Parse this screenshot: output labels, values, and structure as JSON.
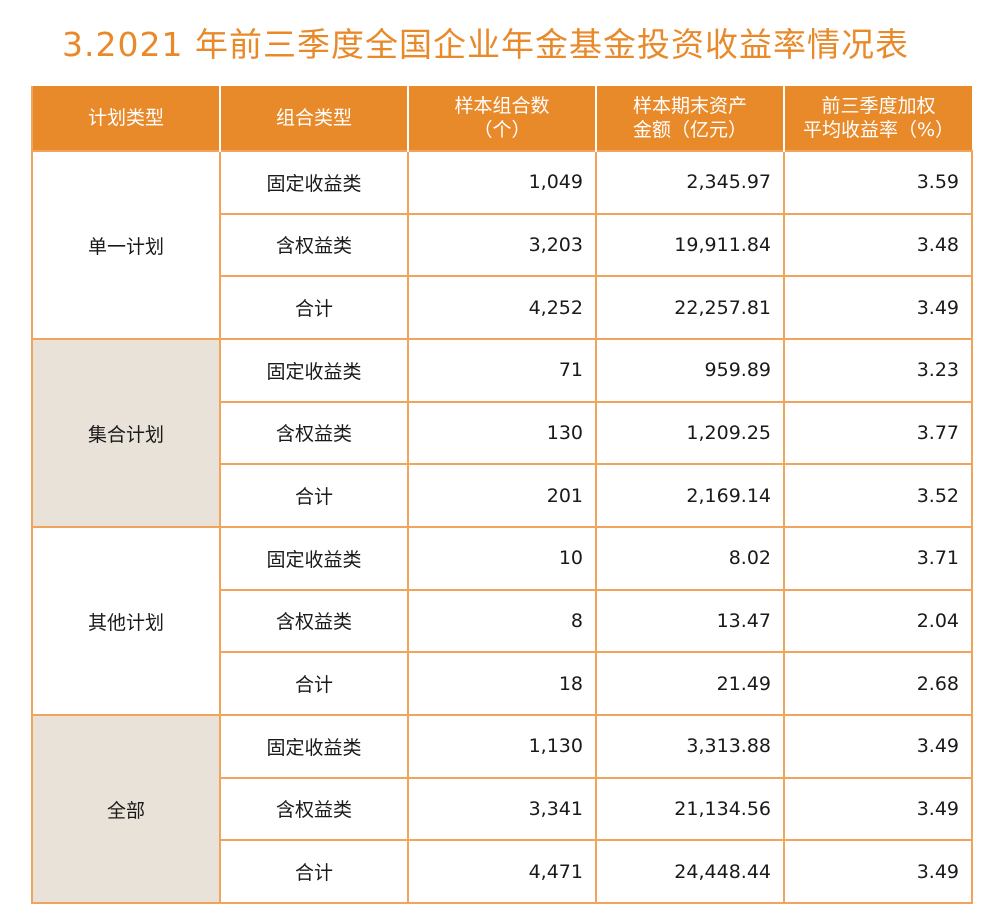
{
  "title": "3.2021 年前三季度全国企业年金基金投资收益率情况表",
  "headers": {
    "plan_type": "计划类型",
    "portfolio_type": "组合类型",
    "sample_count": [
      "样本组合数",
      "（个）"
    ],
    "assets": [
      "样本期末资产",
      "金额（亿元）"
    ],
    "return_rate": [
      "前三季度加权",
      "平均收益率（%）"
    ]
  },
  "groups": [
    {
      "plan": "单一计划",
      "rows": [
        {
          "type": "固定收益类",
          "count": "1,049",
          "assets": "2,345.97",
          "rate": "3.59"
        },
        {
          "type": "含权益类",
          "count": "3,203",
          "assets": "19,911.84",
          "rate": "3.48"
        },
        {
          "type": "合计",
          "count": "4,252",
          "assets": "22,257.81",
          "rate": "3.49"
        }
      ]
    },
    {
      "plan": "集合计划",
      "rows": [
        {
          "type": "固定收益类",
          "count": "71",
          "assets": "959.89",
          "rate": "3.23"
        },
        {
          "type": "含权益类",
          "count": "130",
          "assets": "1,209.25",
          "rate": "3.77"
        },
        {
          "type": "合计",
          "count": "201",
          "assets": "2,169.14",
          "rate": "3.52"
        }
      ]
    },
    {
      "plan": "其他计划",
      "rows": [
        {
          "type": "固定收益类",
          "count": "10",
          "assets": "8.02",
          "rate": "3.71"
        },
        {
          "type": "含权益类",
          "count": "8",
          "assets": "13.47",
          "rate": "2.04"
        },
        {
          "type": "合计",
          "count": "18",
          "assets": "21.49",
          "rate": "2.68"
        }
      ]
    },
    {
      "plan": "全部",
      "rows": [
        {
          "type": "固定收益类",
          "count": "1,130",
          "assets": "3,313.88",
          "rate": "3.49"
        },
        {
          "type": "含权益类",
          "count": "3,341",
          "assets": "21,134.56",
          "rate": "3.49"
        },
        {
          "type": "合计",
          "count": "4,471",
          "assets": "24,448.44",
          "rate": "3.49"
        }
      ]
    }
  ],
  "colors": {
    "accent": "#e8892a",
    "border": "#f0a45c",
    "shade": "#e8e2d9"
  }
}
